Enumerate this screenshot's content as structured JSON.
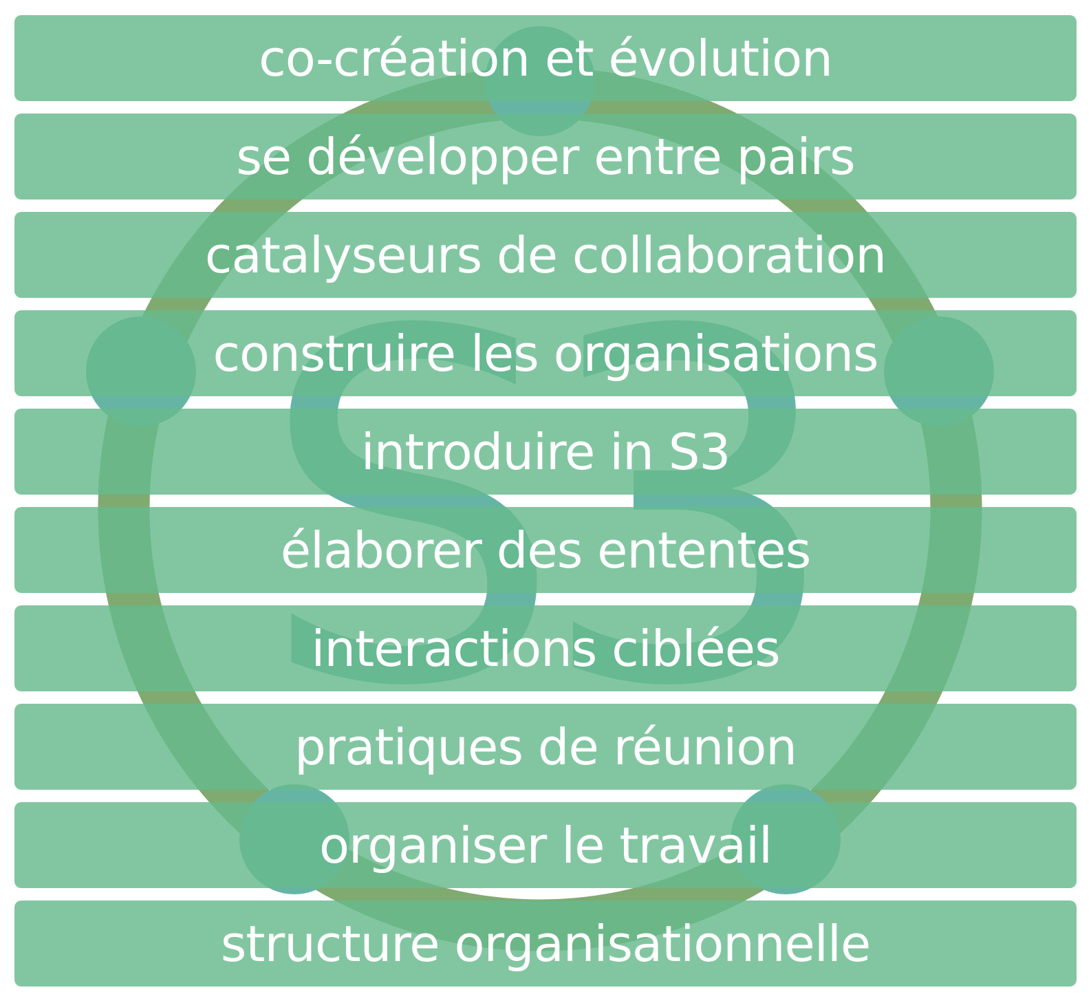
{
  "logo": {
    "ring_color": "#7faa70",
    "dot_color": "#66b5a4",
    "letters_color": "#66b5a4",
    "letters": "S3"
  },
  "band_color": "#82c8a3",
  "bands": [
    {
      "label": "co-création et évolution"
    },
    {
      "label": "se développer entre pairs"
    },
    {
      "label": "catalyseurs de collaboration"
    },
    {
      "label": "construire les organisations"
    },
    {
      "label": "introduire in S3"
    },
    {
      "label": "élaborer des ententes"
    },
    {
      "label": "interactions ciblées"
    },
    {
      "label": "pratiques de réunion"
    },
    {
      "label": "organiser le travail"
    },
    {
      "label": "structure organisationnelle"
    }
  ]
}
